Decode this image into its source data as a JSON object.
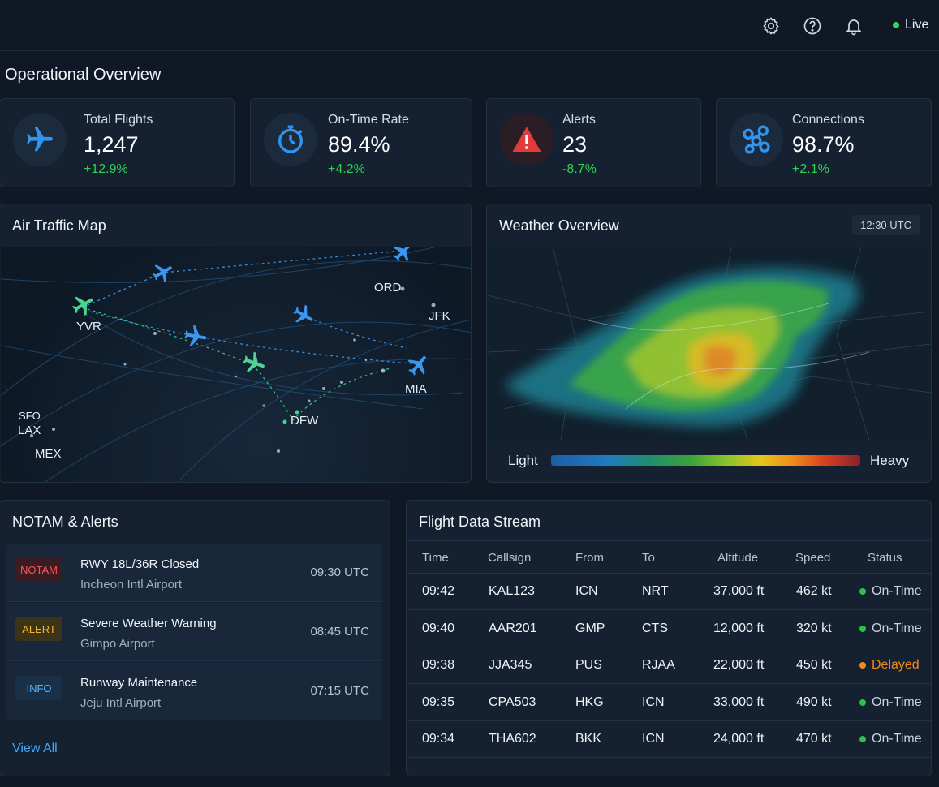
{
  "header": {
    "icons": [
      "gear-icon",
      "help-icon",
      "bell-icon"
    ],
    "live_label": "Live"
  },
  "overview": {
    "title": "Operational Overview",
    "stats": [
      {
        "label": "Total Flights",
        "value": "1,247",
        "delta": "+12.9%",
        "icon": "plane-icon",
        "accent": "#2f95f0"
      },
      {
        "label": "On-Time Rate",
        "value": "89.4%",
        "delta": "+4.2%",
        "icon": "stopwatch-icon",
        "accent": "#2f95f0"
      },
      {
        "label": "Alerts",
        "value": "23",
        "delta": "-8.7%",
        "icon": "warning-icon",
        "accent": "#e23b3b"
      },
      {
        "label": "Connections",
        "value": "98.7%",
        "delta": "+2.1%",
        "icon": "network-icon",
        "accent": "#2f95f0"
      }
    ]
  },
  "map": {
    "title": "Air Traffic Map",
    "cities": [
      "ORD",
      "JFK",
      "YVR",
      "MIA",
      "SFO",
      "LAX",
      "DFW",
      "MEX"
    ]
  },
  "weather": {
    "title": "Weather Overview",
    "time": "12:30 UTC",
    "legend_light": "Light",
    "legend_heavy": "Heavy"
  },
  "notam": {
    "title": "NOTAM & Alerts",
    "items": [
      {
        "badge": "NOTAM",
        "title": "RWY 18L/36R Closed",
        "sub": "Incheon Intl Airport",
        "time": "09:30 UTC"
      },
      {
        "badge": "ALERT",
        "title": "Severe Weather Warning",
        "sub": "Gimpo Airport",
        "time": "08:45 UTC"
      },
      {
        "badge": "INFO",
        "title": "Runway Maintenance",
        "sub": "Jeju Intl Airport",
        "time": "07:15 UTC"
      }
    ],
    "view_all": "View All"
  },
  "stream": {
    "title": "Flight Data Stream",
    "columns": [
      "Time",
      "Callsign",
      "From",
      "To",
      "Altitude",
      "Speed",
      "Status"
    ],
    "rows": [
      {
        "time": "09:42",
        "callsign": "KAL123",
        "from": "ICN",
        "to": "NRT",
        "altitude": "37,000 ft",
        "speed": "462 kt",
        "status": "On-Time"
      },
      {
        "time": "09:40",
        "callsign": "AAR201",
        "from": "GMP",
        "to": "CTS",
        "altitude": "12,000 ft",
        "speed": "320 kt",
        "status": "On-Time"
      },
      {
        "time": "09:38",
        "callsign": "JJA345",
        "from": "PUS",
        "to": "RJAA",
        "altitude": "22,000 ft",
        "speed": "450 kt",
        "status": "Delayed"
      },
      {
        "time": "09:35",
        "callsign": "CPA503",
        "from": "HKG",
        "to": "ICN",
        "altitude": "33,000 ft",
        "speed": "490 kt",
        "status": "On-Time"
      },
      {
        "time": "09:34",
        "callsign": "THA602",
        "from": "BKK",
        "to": "ICN",
        "altitude": "24,000 ft",
        "speed": "470 kt",
        "status": "On-Time"
      }
    ],
    "status_colors": {
      "On-Time": "#2bc24a",
      "Delayed": "#f08a1c"
    }
  }
}
